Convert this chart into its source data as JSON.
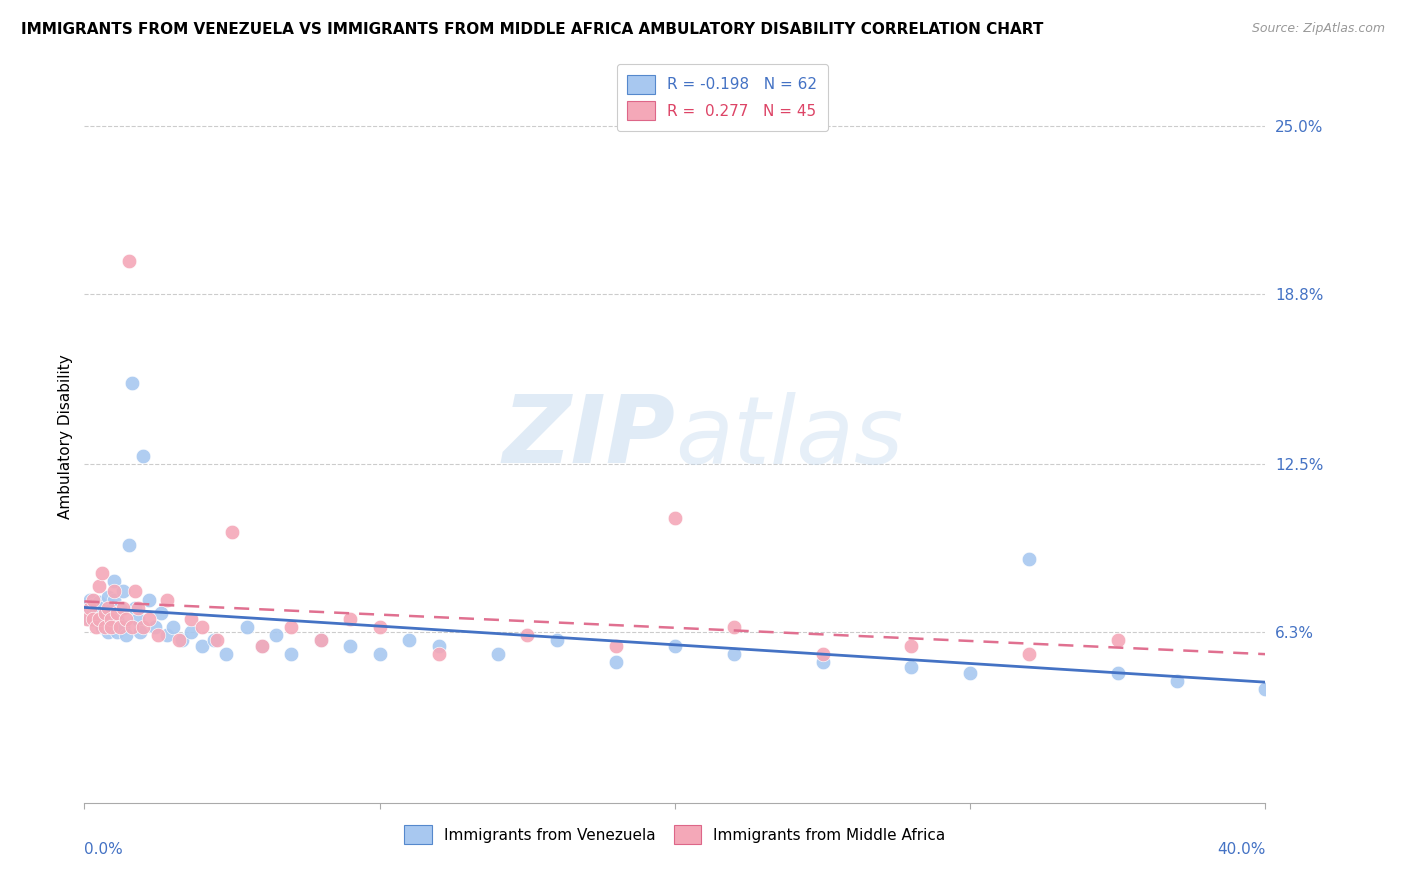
{
  "title": "IMMIGRANTS FROM VENEZUELA VS IMMIGRANTS FROM MIDDLE AFRICA AMBULATORY DISABILITY CORRELATION CHART",
  "source": "Source: ZipAtlas.com",
  "ylabel": "Ambulatory Disability",
  "ytick_labels": [
    "25.0%",
    "18.8%",
    "12.5%",
    "6.3%"
  ],
  "ytick_values": [
    0.25,
    0.188,
    0.125,
    0.063
  ],
  "xmin": 0.0,
  "xmax": 0.4,
  "ymin": 0.0,
  "ymax": 0.27,
  "legend_R1": "-0.198",
  "legend_N1": "62",
  "legend_R2": "0.277",
  "legend_N2": "45",
  "color_blue": "#A8C8F0",
  "color_pink": "#F4A8B8",
  "trendline_blue": "#4472C4",
  "trendline_pink": "#E07090",
  "watermark_color": "#C8DCF0",
  "title_fontsize": 11,
  "source_fontsize": 9,
  "tick_fontsize": 11,
  "legend_fontsize": 11,
  "ven_x": [
    0.001,
    0.002,
    0.002,
    0.003,
    0.003,
    0.004,
    0.004,
    0.005,
    0.005,
    0.006,
    0.006,
    0.007,
    0.007,
    0.008,
    0.008,
    0.009,
    0.009,
    0.01,
    0.01,
    0.011,
    0.011,
    0.012,
    0.013,
    0.013,
    0.014,
    0.015,
    0.016,
    0.017,
    0.018,
    0.019,
    0.02,
    0.022,
    0.024,
    0.026,
    0.028,
    0.03,
    0.033,
    0.036,
    0.04,
    0.044,
    0.048,
    0.055,
    0.06,
    0.065,
    0.07,
    0.08,
    0.09,
    0.1,
    0.11,
    0.12,
    0.14,
    0.16,
    0.18,
    0.2,
    0.22,
    0.25,
    0.28,
    0.3,
    0.32,
    0.35,
    0.37,
    0.4
  ],
  "ven_y": [
    0.072,
    0.068,
    0.075,
    0.07,
    0.073,
    0.071,
    0.069,
    0.074,
    0.067,
    0.072,
    0.065,
    0.07,
    0.068,
    0.076,
    0.063,
    0.071,
    0.069,
    0.082,
    0.075,
    0.068,
    0.063,
    0.072,
    0.065,
    0.078,
    0.062,
    0.095,
    0.155,
    0.072,
    0.068,
    0.063,
    0.128,
    0.075,
    0.065,
    0.07,
    0.062,
    0.065,
    0.06,
    0.063,
    0.058,
    0.06,
    0.055,
    0.065,
    0.058,
    0.062,
    0.055,
    0.06,
    0.058,
    0.055,
    0.06,
    0.058,
    0.055,
    0.06,
    0.052,
    0.058,
    0.055,
    0.052,
    0.05,
    0.048,
    0.09,
    0.048,
    0.045,
    0.042
  ],
  "afr_x": [
    0.001,
    0.002,
    0.003,
    0.003,
    0.004,
    0.005,
    0.005,
    0.006,
    0.007,
    0.007,
    0.008,
    0.009,
    0.009,
    0.01,
    0.011,
    0.012,
    0.013,
    0.014,
    0.015,
    0.016,
    0.017,
    0.018,
    0.02,
    0.022,
    0.025,
    0.028,
    0.032,
    0.036,
    0.04,
    0.045,
    0.05,
    0.06,
    0.07,
    0.08,
    0.09,
    0.1,
    0.12,
    0.15,
    0.18,
    0.2,
    0.22,
    0.25,
    0.28,
    0.32,
    0.35
  ],
  "afr_y": [
    0.068,
    0.072,
    0.068,
    0.075,
    0.065,
    0.08,
    0.068,
    0.085,
    0.07,
    0.065,
    0.072,
    0.068,
    0.065,
    0.078,
    0.07,
    0.065,
    0.072,
    0.068,
    0.2,
    0.065,
    0.078,
    0.072,
    0.065,
    0.068,
    0.062,
    0.075,
    0.06,
    0.068,
    0.065,
    0.06,
    0.1,
    0.058,
    0.065,
    0.06,
    0.068,
    0.065,
    0.055,
    0.062,
    0.058,
    0.105,
    0.065,
    0.055,
    0.058,
    0.055,
    0.06
  ]
}
